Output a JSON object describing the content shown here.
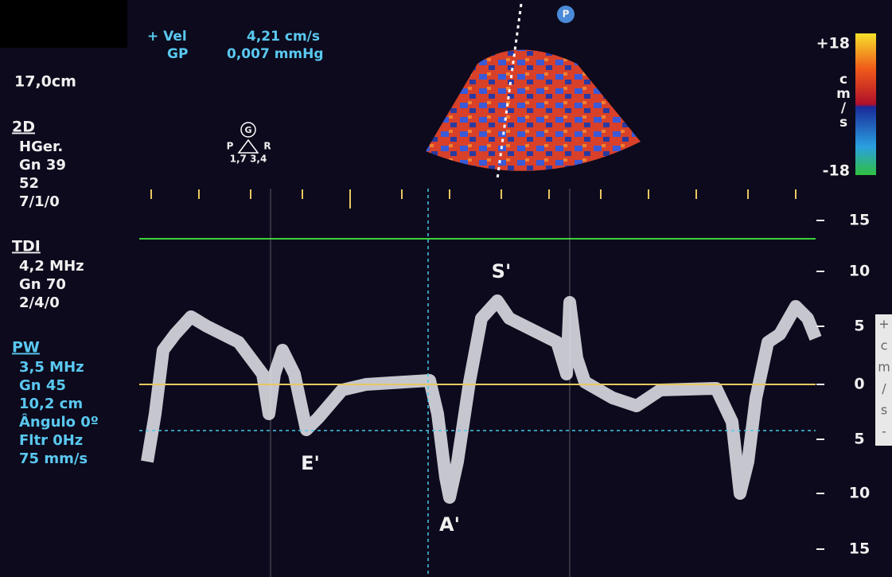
{
  "header": {
    "vel_label": "+ Vel",
    "vel_value": "4,21 cm/s",
    "gp_label": "GP",
    "gp_value": "0,007 mmHg",
    "marker": "P"
  },
  "left_panel": {
    "depth": "17,0cm",
    "sections": [
      {
        "title": "2D",
        "lines": [
          "HGer.",
          "Gn 39",
          "52",
          "7/1/0"
        ]
      },
      {
        "title": "TDI",
        "lines": [
          "4,2 MHz",
          "Gn 70",
          "2/4/0"
        ]
      },
      {
        "title": "PW",
        "lines": [
          "3,5 MHz",
          "Gn 45",
          "10,2 cm",
          "Ângulo 0º",
          "Fltr 0Hz",
          "75 mm/s"
        ]
      }
    ]
  },
  "probe": {
    "center": "G",
    "left": "P",
    "right": "R",
    "values": "1,7 3,4"
  },
  "color_bar": {
    "max": "+18",
    "unit": [
      "c",
      "m",
      "/",
      "s"
    ],
    "min": "-18"
  },
  "scale": {
    "labels": [
      "15",
      "10",
      "5",
      "0",
      "5",
      "10",
      "15"
    ],
    "unit": [
      "+",
      "c",
      "m",
      "/",
      "s",
      "-"
    ]
  },
  "annotations": [
    "S'",
    "E'",
    "A'"
  ]
}
